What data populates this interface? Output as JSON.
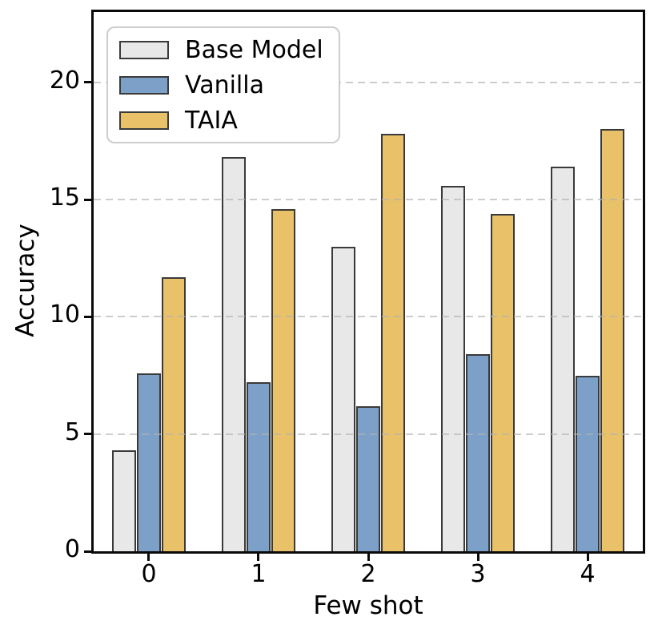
{
  "chart_data": {
    "type": "bar",
    "title": "",
    "xlabel": "Few shot",
    "ylabel": "Accuracy",
    "categories": [
      "0",
      "1",
      "2",
      "3",
      "4"
    ],
    "series": [
      {
        "name": "Base Model",
        "color": "#e8e8e8",
        "values": [
          4.3,
          16.8,
          13.0,
          15.6,
          16.4
        ]
      },
      {
        "name": "Vanilla",
        "color": "#7da0c9",
        "values": [
          7.6,
          7.2,
          6.2,
          8.4,
          7.5
        ]
      },
      {
        "name": "TAIA",
        "color": "#e9c168",
        "values": [
          11.7,
          14.6,
          17.8,
          14.4,
          18.0
        ]
      }
    ],
    "yticks": [
      0,
      5,
      10,
      15,
      20
    ],
    "ylim": [
      0,
      23
    ],
    "grid": {
      "axis": "y",
      "style": "dashed",
      "color": "#d8d8d8"
    },
    "legend": {
      "position": "upper-left"
    },
    "bar_edge_color": "#3a3a3a",
    "spine_color": "#0a0a0a"
  }
}
